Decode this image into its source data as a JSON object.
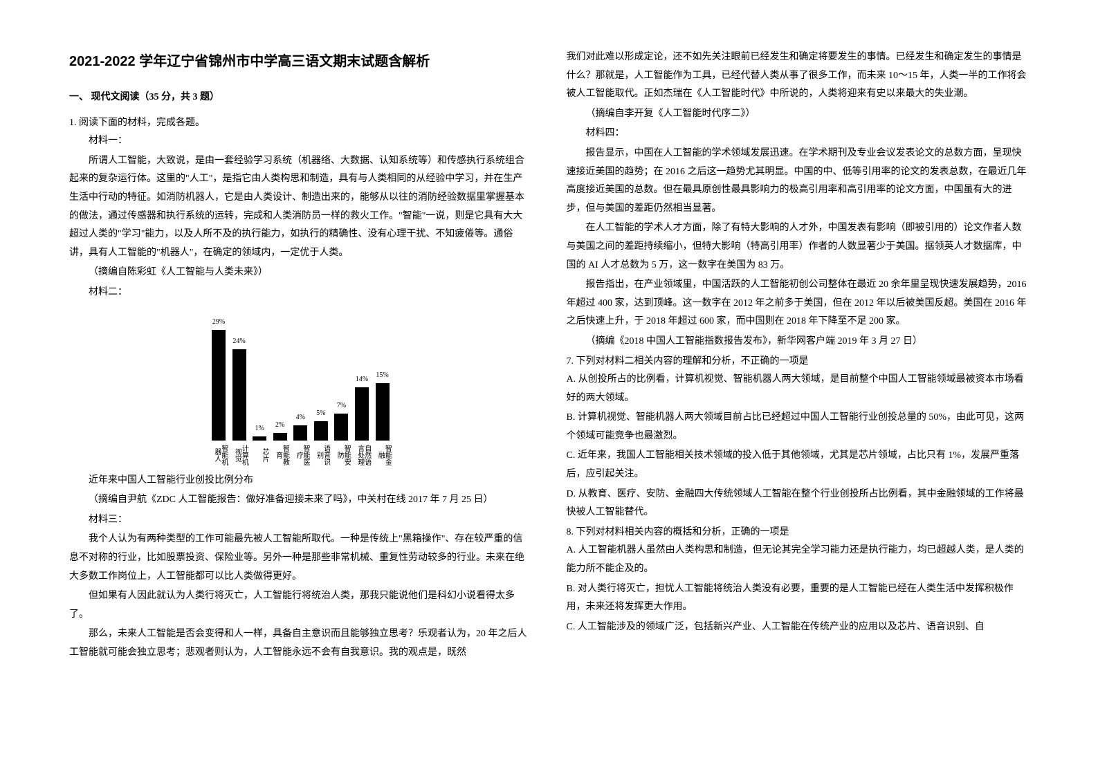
{
  "title": "2021-2022 学年辽宁省锦州市中学高三语文期末试题含解析",
  "section1": "一、 现代文阅读（35 分，共 3 题）",
  "q1": "1. 阅读下面的材料，完成各题。",
  "m1_label": "材料一：",
  "m1_p1": "所谓人工智能，大致说，是由一套经验学习系统（机器络、大数据、认知系统等）和传感执行系统组合起来的复杂运行体。这里的\"人工\"，是指它由人类构思和制造，具有与人类相同的从经验中学习，并在生产生活中行动的特征。如消防机器人，它是由人类设计、制造出来的，能够从以往的消防经验数据里掌握基本的做法，通过传感器和执行系统的运转，完成和人类消防员一样的救火工作。\"智能\"一说，则是它具有大大超过人类的\"学习\"能力，以及人所不及的执行能力，如执行的精确性、没有心理干扰、不知疲倦等。通俗讲，具有人工智能的\"机器人\"，在确定的领域内，一定优于人类。",
  "m1_src": "（摘编自陈彩虹《人工智能与人类未来》）",
  "m2_label": "材料二：",
  "chart": {
    "type": "bar",
    "categories": [
      "智能机器人",
      "计算机视觉",
      "芯片",
      "智能教育",
      "智能医疗",
      "语音识别",
      "智能安防",
      "自然语言处理",
      "智能金融"
    ],
    "values": [
      29,
      24,
      1,
      2,
      4,
      5,
      7,
      14,
      15
    ],
    "labels": [
      "29%",
      "24%",
      "1%",
      "2%",
      "4%",
      "5%",
      "7%",
      "14%",
      "15%"
    ],
    "bar_color": "#000000",
    "max_value": 30,
    "label_fontsize": 10,
    "background_color": "#ffffff"
  },
  "chart_caption": "近年来中国人工智能行业创投比例分布",
  "m2_src": "（摘编自尹航《ZDC 人工智能报告：做好准备迎接未来了吗》，中关村在线 2017 年 7 月 25 日）",
  "m3_label": "材料三：",
  "m3_p1": "我个人认为有两种类型的工作可能最先被人工智能所取代。一种是传统上\"黑箱操作\"、存在较严重的信息不对称的行业，比如股票投资、保险业等。另外一种是那些非常机械、重复性劳动较多的行业。未来在绝大多数工作岗位上，人工智能都可以比人类做得更好。",
  "m3_p2": "但如果有人因此就认为人类行将灭亡，人工智能行将统治人类，那我只能说他们是科幻小说看得太多了。",
  "m3_p3": "那么，未来人工智能是否会变得和人一样，具备自主意识而且能够独立思考？乐观者认为，20 年之后人工智能就可能会独立思考；悲观者则认为，人工智能永远不会有自我意识。我的观点是，既然",
  "col2_p1": "我们对此难以形成定论，还不如先关注眼前已经发生和确定将要发生的事情。已经发生和确定发生的事情是什么？那就是，人工智能作为工具，已经代替人类从事了很多工作，而未来 10～15 年，人类一半的工作将会被人工智能取代。正如杰瑞在《人工智能时代》中所说的，人类将迎来有史以来最大的失业潮。",
  "m3_src": "（摘编自李开复《人工智能时代序二》）",
  "m4_label": "材料四：",
  "m4_p1": "报告显示，中国在人工智能的学术领域发展迅速。在学术期刊及专业会议发表论文的总数方面，呈现快速接近美国的趋势；在 2016 之后这一趋势尤其明显。中国的中、低等引用率的论文的发表总数，在最近几年高度接近美国的总数。但在最具原创性最具影响力的极高引用率和高引用率的论文方面，中国虽有大的进步，但与美国的差距仍然相当显著。",
  "m4_p2": "在人工智能的学术人才方面，除了有特大影响的人才外，中国发表有影响（即被引用的）论文作者人数与美国之间的差距持续缩小，但特大影响（特高引用率）作者的人数显著少于美国。据领英人才数据库，中国的 AI 人才总数为 5 万，这一数字在美国为 83 万。",
  "m4_p3": "报告指出，在产业领域里，中国活跃的人工智能初创公司整体在最近 20 余年里呈现快速发展趋势，2016 年超过 400 家，达到顶峰。这一数字在 2012 年之前多于美国，但在 2012 年以后被美国反超。美国在 2016 年之后快速上升，于 2018 年超过 600 家，而中国则在 2018 年下降至不足 200 家。",
  "m4_src": "（摘编《2018 中国人工智能指数报告发布》，新华网客户端 2019 年 3 月 27 日）",
  "q7": "7.  下列对材料二相关内容的理解和分析，不正确的一项是",
  "q7_a": "A.  从创投所占的比例看，计算机视觉、智能机器人两大领域，是目前整个中国人工智能领域最被资本市场看好的两大领域。",
  "q7_b": "B.  计算机视觉、智能机器人两大领域目前占比已经超过中国人工智能行业创投总量的 50%，由此可见，这两个领域可能竞争也最激烈。",
  "q7_c": "C.  近年来，我国人工智能相关技术领域的投入低于其他领域，尤其是芯片领域，占比只有 1%，发展严重落后，应引起关注。",
  "q7_d": "D.  从教育、医疗、安防、金融四大传统领域人工智能在整个行业创投所占比例看，其中金融领域的工作将最快被人工智能替代。",
  "q8": "8.  下列对材料相关内容的概括和分析，正确的一项是",
  "q8_a": "A.  人工智能机器人虽然由人类构思和制造，但无论其完全学习能力还是执行能力，均已超越人类，是人类的能力所不能企及的。",
  "q8_b": "B.  对人类行将灭亡，担忧人工智能将统治人类没有必要，重要的是人工智能已经在人类生活中发挥积极作用，未来还将发挥更大作用。",
  "q8_c": "C.  人工智能涉及的领域广泛，包括新兴产业、人工智能在传统产业的应用以及芯片、语音识别、自"
}
